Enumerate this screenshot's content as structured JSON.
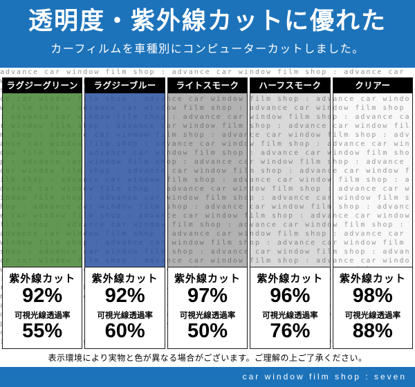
{
  "header": {
    "title": "透明度・紫外線カットに優れた",
    "subtitle": "カーフィルムを車種別にコンピューターカットしました。"
  },
  "watermark": "advance car window film shop : ",
  "films": [
    {
      "name": "ラグジーグリーン",
      "uv_label": "紫外線カット",
      "uv_value": "92%",
      "vlt_label": "可視光線透過率",
      "vlt_value": "55%",
      "tint": "rgba(62,128,44,0.82)"
    },
    {
      "name": "ラグジーブルー",
      "uv_label": "紫外線カット",
      "uv_value": "92%",
      "vlt_label": "可視光線透過率",
      "vlt_value": "60%",
      "tint": "rgba(34,74,156,0.82)"
    },
    {
      "name": "ライトスモーク",
      "uv_label": "紫外線カット",
      "uv_value": "97%",
      "vlt_label": "可視光線透過率",
      "vlt_value": "50%",
      "tint": "rgba(85,85,85,0.45)"
    },
    {
      "name": "ハーフスモーク",
      "uv_label": "紫外線カット",
      "uv_value": "96%",
      "vlt_label": "可視光線透過率",
      "vlt_value": "76%",
      "tint": "rgba(120,120,120,0.28)"
    },
    {
      "name": "クリアー",
      "uv_label": "紫外線カット",
      "uv_value": "98%",
      "vlt_label": "可視光線透過率",
      "vlt_value": "88%",
      "tint": "rgba(205,205,205,0.15)"
    }
  ],
  "disclaimer": "表示環境により実物と色が異なる場合がございます。ご理解の上ご了承ください。",
  "footer": "car window film shop : seven",
  "colors": {
    "brand_blue": "#1d73ba",
    "bar_black": "#000000"
  }
}
